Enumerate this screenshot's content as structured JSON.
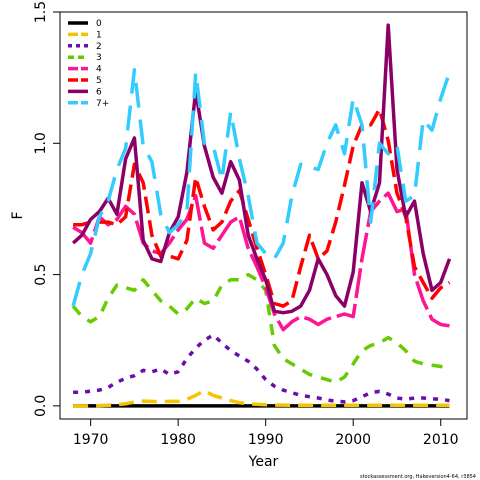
{
  "chart_data": {
    "type": "line",
    "xlabel": "Year",
    "ylabel": "F",
    "xlim": [
      1966.5,
      2013
    ],
    "ylim": [
      -0.05,
      1.5
    ],
    "xticks": [
      1970,
      1980,
      1990,
      2000,
      2010
    ],
    "yticks": [
      0.0,
      0.5,
      1.0,
      1.5
    ],
    "ytick_labels": [
      "0.0",
      "0.5",
      "1.0",
      "1.5"
    ],
    "legend_position": "top-left",
    "footnote": "stockassessment.org, Hakeversion4-64, r3854",
    "years": [
      1968,
      1969,
      1970,
      1971,
      1972,
      1973,
      1974,
      1975,
      1976,
      1977,
      1978,
      1979,
      1980,
      1981,
      1982,
      1983,
      1984,
      1985,
      1986,
      1987,
      1988,
      1989,
      1990,
      1991,
      1992,
      1993,
      1994,
      1995,
      1996,
      1997,
      1998,
      1999,
      2000,
      2001,
      2002,
      2003,
      2004,
      2005,
      2006,
      2007,
      2008,
      2009,
      2010,
      2011
    ],
    "series": [
      {
        "name": "0",
        "color": "#000000",
        "dash": "solid",
        "values": [
          0.0,
          0.0,
          0.0,
          0.0,
          0.0,
          0.0,
          0.0,
          0.0,
          0.0,
          0.0,
          0.0,
          0.0,
          0.0,
          0.0,
          0.0,
          0.0,
          0.0,
          0.0,
          0.0,
          0.0,
          0.0,
          0.0,
          0.0,
          0.0,
          0.0,
          0.0,
          0.0,
          0.0,
          0.0,
          0.0,
          0.0,
          0.0,
          0.0,
          0.0,
          0.0,
          0.0,
          0.0,
          0.0,
          0.0,
          0.0,
          0.0,
          0.0,
          0.0,
          0.0
        ]
      },
      {
        "name": "1",
        "color": "#f5c400",
        "dash": "15,8",
        "values": [
          0.0,
          0.0,
          0.0,
          0.001,
          0.002,
          0.004,
          0.008,
          0.015,
          0.018,
          0.017,
          0.016,
          0.017,
          0.017,
          0.025,
          0.04,
          0.058,
          0.04,
          0.03,
          0.02,
          0.012,
          0.008,
          0.006,
          0.004,
          0.003,
          0.003,
          0.002,
          0.002,
          0.002,
          0.002,
          0.002,
          0.002,
          0.002,
          0.002,
          0.002,
          0.002,
          0.002,
          0.002,
          0.002,
          0.002,
          0.002,
          0.002,
          0.002,
          0.002,
          0.002
        ]
      },
      {
        "name": "2",
        "color": "#6a0dad",
        "dash": "5,7",
        "values": [
          0.052,
          0.052,
          0.056,
          0.06,
          0.07,
          0.09,
          0.105,
          0.115,
          0.135,
          0.13,
          0.14,
          0.12,
          0.13,
          0.18,
          0.22,
          0.25,
          0.27,
          0.24,
          0.21,
          0.19,
          0.17,
          0.14,
          0.1,
          0.075,
          0.06,
          0.05,
          0.04,
          0.035,
          0.03,
          0.022,
          0.018,
          0.015,
          0.02,
          0.035,
          0.05,
          0.055,
          0.045,
          0.03,
          0.025,
          0.03,
          0.03,
          0.027,
          0.025,
          0.02
        ]
      },
      {
        "name": "3",
        "color": "#66cc00",
        "dash": "11,9",
        "values": [
          0.38,
          0.34,
          0.32,
          0.34,
          0.41,
          0.46,
          0.45,
          0.44,
          0.48,
          0.44,
          0.4,
          0.38,
          0.35,
          0.37,
          0.41,
          0.39,
          0.4,
          0.46,
          0.48,
          0.48,
          0.5,
          0.48,
          0.44,
          0.23,
          0.18,
          0.16,
          0.14,
          0.12,
          0.11,
          0.1,
          0.09,
          0.11,
          0.16,
          0.21,
          0.23,
          0.24,
          0.26,
          0.24,
          0.21,
          0.17,
          0.16,
          0.155,
          0.15,
          0.145
        ]
      },
      {
        "name": "4",
        "color": "#ff1493",
        "dash": "30,6",
        "values": [
          0.68,
          0.66,
          0.62,
          0.72,
          0.69,
          0.71,
          0.76,
          0.73,
          0.62,
          0.59,
          0.58,
          0.62,
          0.67,
          0.71,
          0.8,
          0.62,
          0.6,
          0.65,
          0.7,
          0.72,
          0.6,
          0.53,
          0.45,
          0.35,
          0.29,
          0.32,
          0.34,
          0.33,
          0.31,
          0.33,
          0.34,
          0.35,
          0.34,
          0.56,
          0.74,
          0.78,
          0.81,
          0.74,
          0.75,
          0.5,
          0.4,
          0.33,
          0.31,
          0.305
        ]
      },
      {
        "name": "5",
        "color": "#ff0000",
        "dash": "17,7",
        "values": [
          0.69,
          0.69,
          0.7,
          0.7,
          0.7,
          0.69,
          0.72,
          0.92,
          0.85,
          0.65,
          0.57,
          0.57,
          0.56,
          0.63,
          0.87,
          0.76,
          0.67,
          0.7,
          0.78,
          0.82,
          0.71,
          0.6,
          0.5,
          0.39,
          0.38,
          0.4,
          0.53,
          0.65,
          0.56,
          0.59,
          0.7,
          0.84,
          0.99,
          1.07,
          1.07,
          1.13,
          1.01,
          0.81,
          0.72,
          0.53,
          0.47,
          0.41,
          0.45,
          0.47
        ]
      },
      {
        "name": "6",
        "color": "#8b0066",
        "dash": "solid",
        "values": [
          0.62,
          0.65,
          0.71,
          0.74,
          0.79,
          0.73,
          0.94,
          1.02,
          0.63,
          0.56,
          0.55,
          0.66,
          0.72,
          0.89,
          1.2,
          0.99,
          0.87,
          0.81,
          0.93,
          0.86,
          0.65,
          0.56,
          0.48,
          0.36,
          0.355,
          0.36,
          0.38,
          0.44,
          0.56,
          0.5,
          0.42,
          0.38,
          0.51,
          0.85,
          0.74,
          0.85,
          1.45,
          0.9,
          0.72,
          0.78,
          0.58,
          0.44,
          0.47,
          0.56
        ]
      },
      {
        "name": "7+",
        "color": "#33ccff",
        "dash": "25,12",
        "values": [
          0.38,
          0.5,
          0.58,
          0.72,
          0.78,
          0.9,
          0.98,
          1.28,
          0.99,
          0.93,
          0.73,
          0.66,
          0.69,
          0.74,
          1.27,
          1.0,
          0.99,
          0.86,
          1.12,
          0.94,
          0.8,
          0.62,
          0.58,
          0.56,
          0.62,
          0.8,
          0.92,
          0.91,
          0.9,
          1.0,
          1.07,
          0.96,
          1.17,
          1.07,
          0.7,
          1.0,
          0.96,
          0.99,
          0.78,
          0.8,
          1.09,
          1.05,
          1.17,
          1.27
        ]
      }
    ]
  }
}
